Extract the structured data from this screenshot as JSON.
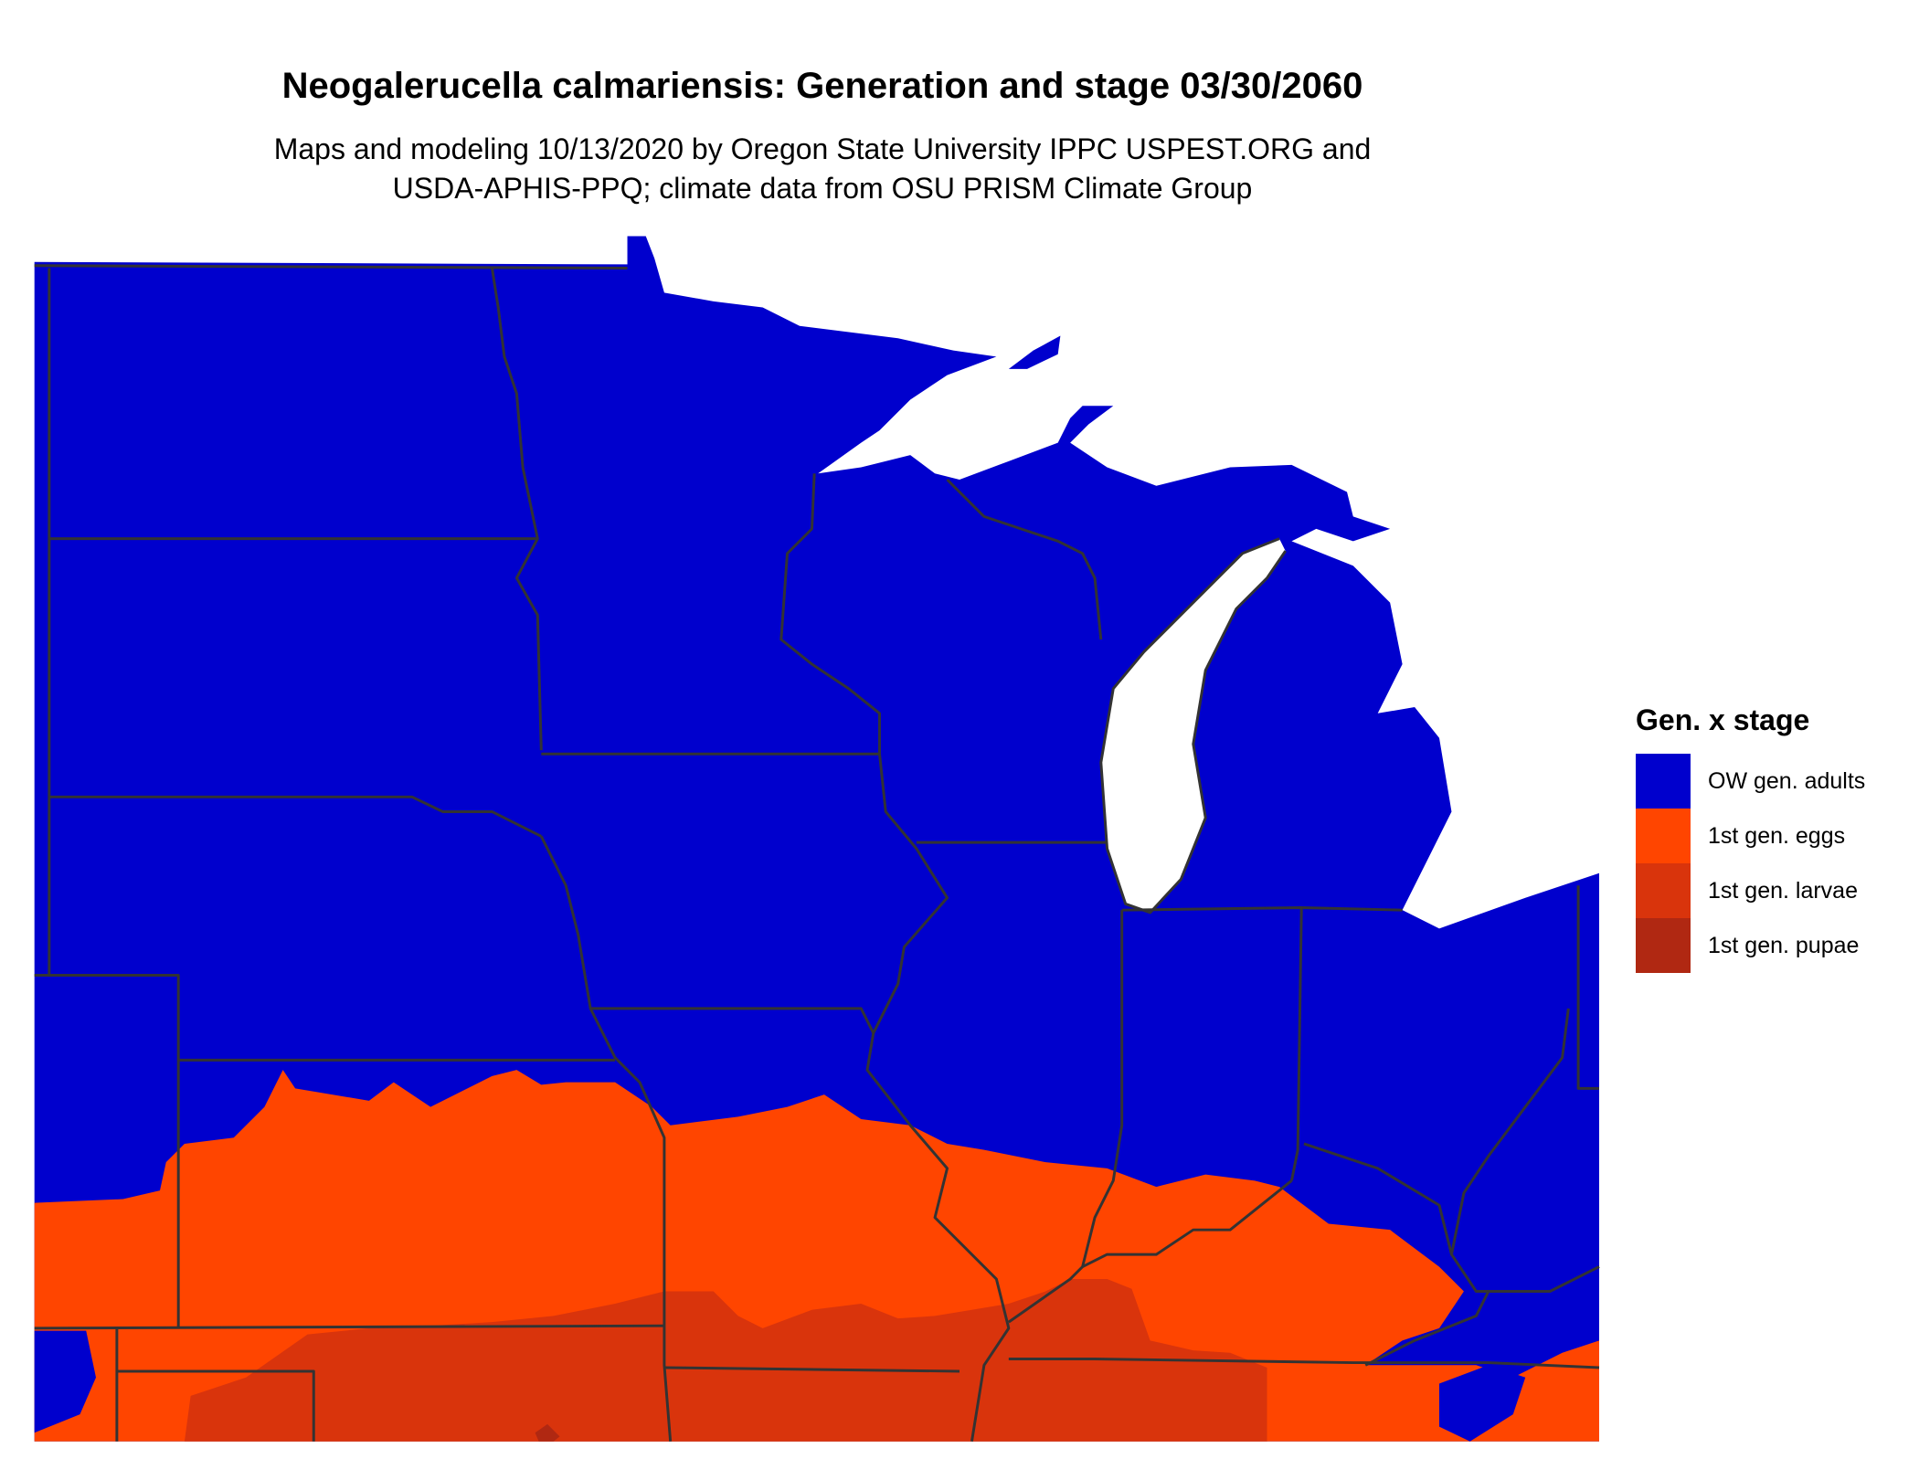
{
  "title": "Neogalerucella calmariensis: Generation and stage 03/30/2060",
  "subtitle_lines": [
    "Maps and modeling 10/13/2020 by Oregon State University IPPC USPEST.ORG and",
    "USDA-APHIS-PPQ; climate data from OSU PRISM Climate Group"
  ],
  "legend": {
    "title": "Gen. x stage",
    "items": [
      {
        "label": "OW gen. adults",
        "color": "#0000CD"
      },
      {
        "label": "1st gen. eggs",
        "color": "#FF4500"
      },
      {
        "label": "1st gen. larvae",
        "color": "#D9340C"
      },
      {
        "label": "1st gen. pupae",
        "color": "#B02812"
      }
    ]
  },
  "map": {
    "region": "US Upper Midwest / Central states",
    "boundary_color": "#333333",
    "water_color": "#FFFFFF"
  }
}
